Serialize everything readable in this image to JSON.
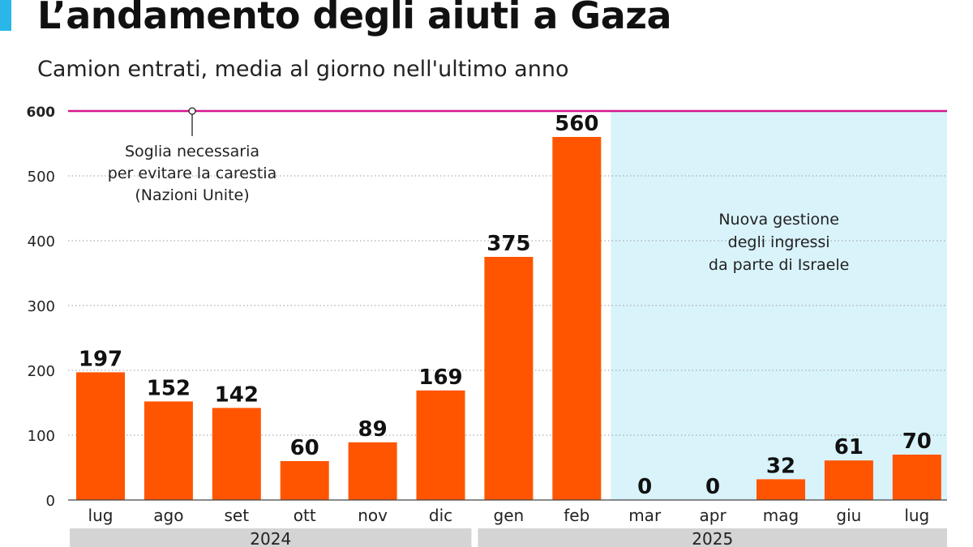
{
  "title": "L’andamento degli aiuti a Gaza",
  "subtitle": "Camion entrati, media al giorno nell'ultimo anno",
  "colors": {
    "bar": "#ff5500",
    "threshold": "#d4168c",
    "highlight": "#d9f3fb",
    "year_band": "#d4d4d4",
    "accent": "#29b6e8"
  },
  "chart_data": {
    "type": "bar",
    "categories": [
      "lug",
      "ago",
      "set",
      "ott",
      "nov",
      "dic",
      "gen",
      "feb",
      "mar",
      "apr",
      "mag",
      "giu",
      "lug"
    ],
    "values": [
      197,
      152,
      142,
      60,
      89,
      169,
      375,
      560,
      0,
      0,
      32,
      61,
      70
    ],
    "ylim": [
      0,
      600
    ],
    "yticks": [
      "0",
      "100",
      "200",
      "300",
      "400",
      "500",
      "600"
    ],
    "grid": true,
    "year_groups": [
      {
        "label": "2024",
        "from": 0,
        "to": 5
      },
      {
        "label": "2025",
        "from": 6,
        "to": 12
      }
    ],
    "threshold": {
      "value": 600,
      "label_lines": [
        "Soglia necessaria",
        "per evitare la carestia",
        "(Nazioni Unite)"
      ]
    },
    "highlight_region": {
      "from": 8,
      "to": 12,
      "label_lines": [
        "Nuova gestione",
        "degli ingressi",
        "da parte di Israele"
      ]
    }
  }
}
